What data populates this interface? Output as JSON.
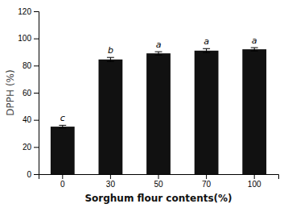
{
  "chart_data": {
    "type": "bar",
    "categories": [
      "0",
      "30",
      "50",
      "70",
      "100"
    ],
    "values": [
      35.0,
      84.5,
      89.0,
      91.0,
      92.0
    ],
    "errors": [
      1.0,
      1.5,
      1.2,
      1.5,
      1.2
    ],
    "annotations": [
      "c",
      "b",
      "a",
      "a",
      "a"
    ],
    "color": "#111111",
    "xlabel": "Sorghum flour contents(%)",
    "ylabel": "DPPH (%)",
    "ylim": [
      0,
      120
    ],
    "yticks": [
      0,
      20,
      40,
      60,
      80,
      100,
      120
    ],
    "grid": false
  }
}
